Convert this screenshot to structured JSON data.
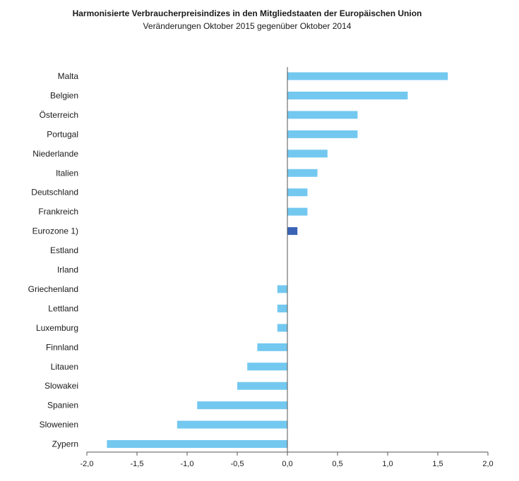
{
  "chart_data": {
    "type": "bar",
    "orientation": "horizontal",
    "title": "Harmonisierte Verbraucherpreisindizes in den Mitgliedstaaten der Europäischen Union",
    "subtitle": "Veränderungen Oktober 2015 gegenüber Oktober 2014",
    "categories": [
      "Malta",
      "Belgien",
      "Österreich",
      "Portugal",
      "Niederlande",
      "Italien",
      "Deutschland",
      "Frankreich",
      "Eurozone 1)",
      "Estland",
      "Irland",
      "Griechenland",
      "Lettland",
      "Luxemburg",
      "Finnland",
      "Litauen",
      "Slowakei",
      "Spanien",
      "Slowenien",
      "Zypern"
    ],
    "values": [
      1.6,
      1.2,
      0.7,
      0.7,
      0.4,
      0.3,
      0.2,
      0.2,
      0.1,
      0.0,
      0.0,
      -0.1,
      -0.1,
      -0.1,
      -0.3,
      -0.4,
      -0.5,
      -0.9,
      -1.1,
      -1.8
    ],
    "highlight": [
      "Eurozone 1)"
    ],
    "xlim": [
      -2.0,
      2.0
    ],
    "xticks": [
      "-2,0",
      "-1,5",
      "-1,0",
      "-0,5",
      "0,0",
      "0,5",
      "1,0",
      "1,5",
      "2,0"
    ],
    "xtick_values": [
      -2.0,
      -1.5,
      -1.0,
      -0.5,
      0.0,
      0.5,
      1.0,
      1.5,
      2.0
    ],
    "grid": false,
    "colors": {
      "bar": "#73c8f0",
      "highlight": "#3a63b5",
      "axis": "#555555"
    }
  }
}
